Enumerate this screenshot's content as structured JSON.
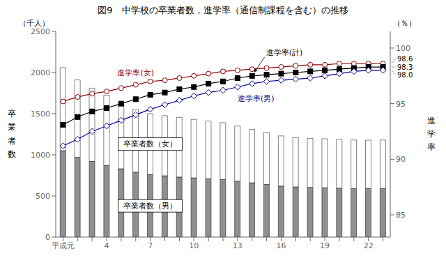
{
  "chart_data": {
    "type": "bar",
    "title": "図9　中学校の卒業者数，進学率（通信制課程を含む）の推移",
    "ylabel": "卒\n業\n者\n数",
    "yunit": "（千人）",
    "y2label": "進\n学\n率",
    "y2unit": "（％）",
    "categories": [
      "平成元",
      null,
      null,
      "4",
      null,
      null,
      "7",
      null,
      null,
      "10",
      null,
      null,
      "13",
      null,
      null,
      "16",
      null,
      null,
      "19",
      null,
      null,
      "22",
      null
    ],
    "series": [
      {
        "name": "卒業者数（男）",
        "type": "bar",
        "color": "#909090",
        "values": [
          1050,
          970,
          920,
          870,
          830,
          790,
          760,
          745,
          730,
          720,
          710,
          700,
          680,
          660,
          640,
          620,
          610,
          605,
          600,
          595,
          590,
          590,
          590
        ]
      },
      {
        "name": "卒業者数（女）",
        "type": "bar",
        "color": "#ffffff",
        "values": [
          1010,
          940,
          890,
          855,
          795,
          760,
          740,
          730,
          725,
          710,
          700,
          690,
          670,
          650,
          630,
          610,
          600,
          595,
          595,
          592,
          590,
          588,
          590
        ]
      },
      {
        "name": "進学率(女)",
        "type": "line",
        "axis": "y2",
        "color": "#8b0000",
        "marker": "open_circle",
        "values": [
          95.2,
          95.6,
          95.9,
          96.1,
          96.4,
          96.7,
          97.0,
          97.1,
          97.3,
          97.5,
          97.7,
          97.9,
          98.0,
          98.1,
          98.2,
          98.3,
          98.4,
          98.5,
          98.5,
          98.6,
          98.6,
          98.6,
          98.6
        ]
      },
      {
        "name": "進学率(計)",
        "type": "line",
        "axis": "y2",
        "color": "#000000",
        "marker": "square",
        "values": [
          93.1,
          93.8,
          94.3,
          94.6,
          95.0,
          95.4,
          95.8,
          96.0,
          96.3,
          96.5,
          96.8,
          97.0,
          97.3,
          97.5,
          97.6,
          97.7,
          97.8,
          97.9,
          98.0,
          98.1,
          98.2,
          98.3,
          98.3
        ]
      },
      {
        "name": "進学率(男)",
        "type": "line",
        "axis": "y2",
        "color": "#00008b",
        "marker": "open_diamond",
        "values": [
          91.2,
          91.8,
          92.5,
          93.0,
          93.5,
          94.0,
          94.5,
          94.9,
          95.3,
          95.7,
          96.0,
          96.2,
          96.5,
          96.8,
          97.0,
          97.1,
          97.2,
          97.3,
          97.5,
          97.7,
          97.9,
          98.0,
          98.0
        ]
      }
    ],
    "stacked": true,
    "ylim": [
      0,
      2500
    ],
    "yticks": [
      0,
      500,
      1000,
      1500,
      2000,
      2500
    ],
    "y2lim": [
      83.0,
      101.5
    ],
    "y2ticks": [
      85,
      90,
      95,
      100
    ],
    "annotations": [
      {
        "text": "98.6",
        "y": 98.6,
        "axis": "y2"
      },
      {
        "text": "98.3",
        "y": 98.3,
        "axis": "y2"
      },
      {
        "text": "98.0",
        "y": 98.0,
        "axis": "y2"
      }
    ],
    "grid": false
  }
}
